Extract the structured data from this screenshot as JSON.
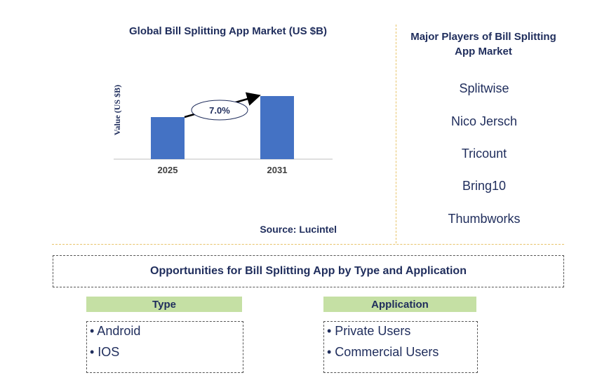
{
  "chart_data": {
    "type": "bar",
    "title": "Global Bill Splitting App Market (US $B)",
    "ylabel": "Value (US $B)",
    "xlabel": "",
    "categories": [
      "2025",
      "2031"
    ],
    "values": [
      1.0,
      1.5
    ],
    "ylim": [
      0,
      1.6
    ],
    "bar_color": "#4472c4",
    "cagr_label": "7.0%",
    "source": "Source: Lucintel"
  },
  "players": {
    "title": "Major Players of Bill Splitting App Market",
    "items": [
      "Splitwise",
      "Nico Jersch",
      "Tricount",
      "Bring10",
      "Thumbworks"
    ]
  },
  "opportunities": {
    "title": "Opportunities for Bill Splitting App by Type and Application",
    "type": {
      "header": "Type",
      "items": [
        "• Android",
        "• IOS"
      ]
    },
    "application": {
      "header": "Application",
      "items": [
        "• Private Users",
        "• Commercial Users"
      ]
    }
  },
  "colors": {
    "accent_green": "#c5e0a4",
    "divider": "#e8c46a",
    "text": "#1f2d5c"
  }
}
